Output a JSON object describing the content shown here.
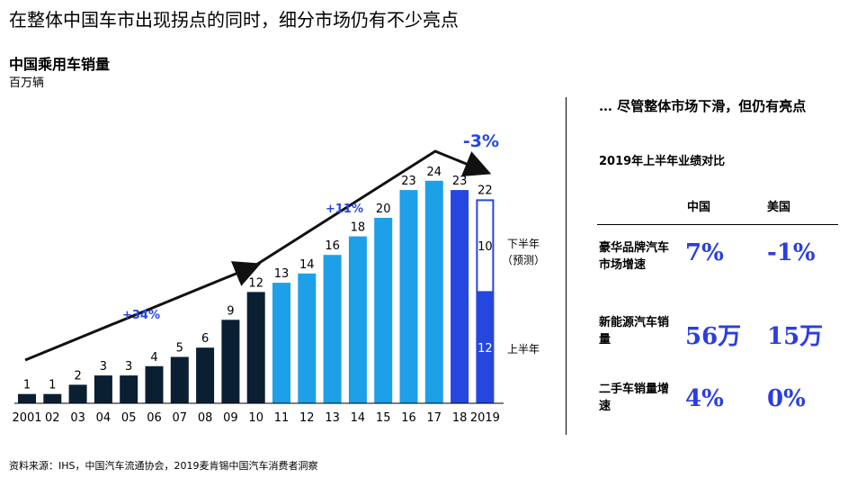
{
  "headline": "在整体中国车市出现拐点的同时，细分市场仍有不少亮点",
  "chart": {
    "title": "中国乘用车销量",
    "unit": "百万辆",
    "growth_labels": [
      "+34%",
      "+11%",
      "-3%"
    ],
    "annotations": {
      "h2": "下半年\n（预测）",
      "h1": "上半年"
    }
  },
  "chart_data": {
    "type": "bar",
    "title": "中国乘用车销量",
    "ylabel": "百万辆",
    "categories": [
      "2001",
      "02",
      "03",
      "04",
      "05",
      "06",
      "07",
      "08",
      "09",
      "10",
      "11",
      "12",
      "13",
      "14",
      "15",
      "16",
      "17",
      "18",
      "2019"
    ],
    "values": [
      1,
      1,
      2,
      3,
      3,
      4,
      5,
      6,
      9,
      12,
      13,
      14,
      16,
      18,
      20,
      23,
      24,
      23,
      22
    ],
    "stack_2019": {
      "上半年": 12,
      "下半年（预测）": 10
    },
    "ylim": [
      0,
      28
    ],
    "colors": {
      "dark": "#0b1f33",
      "light": "#1ea0e8",
      "blue": "#2547e0",
      "outline": "#2547e0"
    }
  },
  "side": {
    "title": "… 尽管整体市场下滑，但仍有亮点",
    "subtitle": "2019年上半年业绩对比",
    "col_cn": "中国",
    "col_us": "美国",
    "rows": [
      {
        "label": "豪华品牌汽车市场增速",
        "cn": "7%",
        "us": "-1%"
      },
      {
        "label": "新能源汽车销量",
        "cn": "56万",
        "us": "15万"
      },
      {
        "label": "二手车销量增速",
        "cn": "4%",
        "us": "0%"
      }
    ]
  },
  "source": "资料来源：IHS，中国汽车流通协会，2019麦肯锡中国汽车消费者洞察"
}
